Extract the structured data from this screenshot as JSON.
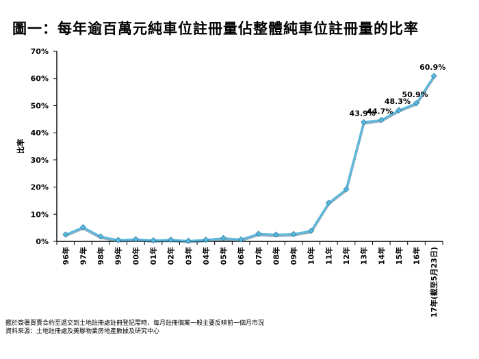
{
  "chart_data": {
    "type": "line",
    "title": "圖一：每年逾百萬元純車位註冊量佔整體純車位註冊量的比率",
    "ylabel": "比率",
    "xlabel": "",
    "ylim": [
      0,
      70
    ],
    "yticks": [
      "0%",
      "10%",
      "20%",
      "30%",
      "40%",
      "50%",
      "60%",
      "70%"
    ],
    "categories": [
      "96年",
      "97年",
      "98年",
      "99年",
      "00年",
      "01年",
      "02年",
      "03年",
      "04年",
      "05年",
      "06年",
      "07年",
      "08年",
      "09年",
      "10年",
      "11年",
      "12年",
      "13年",
      "14年",
      "15年",
      "16年",
      "17年(截至5月23日)"
    ],
    "series": [
      {
        "values": [
          2.5,
          5.2,
          1.8,
          0.5,
          0.8,
          0.4,
          0.6,
          0.2,
          0.6,
          1.2,
          0.7,
          2.8,
          2.5,
          2.7,
          3.9,
          14.2,
          19.2,
          43.9,
          44.7,
          48.3,
          50.9,
          60.9
        ],
        "color": "#58b8e0"
      }
    ],
    "data_labels": [
      {
        "index": 17,
        "text": "43.9%"
      },
      {
        "index": 18,
        "text": "44.7%"
      },
      {
        "index": 19,
        "text": "48.3%"
      },
      {
        "index": 20,
        "text": "50.9%"
      },
      {
        "index": 21,
        "text": "60.9%"
      }
    ],
    "grid": false,
    "legend": "none"
  },
  "notes": [
    "鑑於簽署買賣合約至遞交到土地註冊處註冊登記需時，每月註冊個案一般主要反映前一個月市況",
    "資料來源：土地註冊處及美聯物業房地產數據及研究中心"
  ]
}
